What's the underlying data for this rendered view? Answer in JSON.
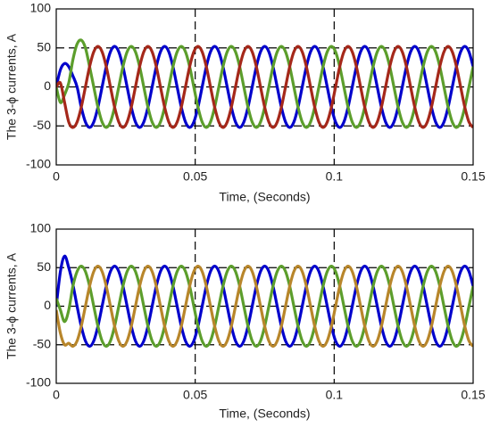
{
  "chart_data": [
    {
      "type": "line",
      "xlabel": "Time, (Seconds)",
      "ylabel": "The 3-ϕ currents, A",
      "xlim": [
        0,
        0.15
      ],
      "ylim": [
        -100,
        100
      ],
      "xticks": [
        0,
        0.05,
        0.1,
        0.15
      ],
      "yticks": [
        -100,
        -50,
        0,
        50,
        100
      ],
      "grid": true,
      "x": [
        0,
        0.0015,
        0.003,
        0.0045,
        0.006,
        0.0075,
        0.009,
        0.0105,
        0.012,
        0.0135,
        0.015,
        0.0165,
        0.018,
        0.0195,
        0.021,
        0.0225,
        0.024,
        0.0255,
        0.027,
        0.0285,
        0.03,
        0.0315,
        0.033,
        0.0345,
        0.036,
        0.0375,
        0.039,
        0.0405,
        0.042,
        0.0435,
        0.045,
        0.0465,
        0.048,
        0.0495,
        0.051,
        0.0525,
        0.054,
        0.0555,
        0.057,
        0.0585,
        0.06,
        0.0615,
        0.063,
        0.0645,
        0.066,
        0.0675,
        0.069,
        0.0705,
        0.072,
        0.0735,
        0.075,
        0.0765,
        0.078,
        0.0795,
        0.081,
        0.0825,
        0.084,
        0.0855,
        0.087,
        0.0885,
        0.09,
        0.0915,
        0.093,
        0.0945,
        0.096,
        0.0975,
        0.099,
        0.1005,
        0.102,
        0.1035,
        0.105,
        0.1065,
        0.108,
        0.1095,
        0.111,
        0.1125,
        0.114,
        0.1155,
        0.117,
        0.1185,
        0.12,
        0.1215,
        0.123,
        0.1245,
        0.126,
        0.1275,
        0.129,
        0.1305,
        0.132,
        0.1335,
        0.135,
        0.1365,
        0.138,
        0.1395,
        0.141,
        0.1425,
        0.144,
        0.1455,
        0.147,
        0.1485,
        0.15
      ],
      "series": [
        {
          "color": "#0000cc",
          "values": [
            0,
            22,
            30,
            26,
            14,
            0,
            -26,
            -45,
            -52,
            -45,
            -26,
            0,
            26,
            45,
            52,
            45,
            26,
            0,
            -26,
            -45,
            -52,
            -45,
            -26,
            0,
            26,
            45,
            52,
            45,
            26,
            0,
            -26,
            -45,
            -52,
            -45,
            -26,
            0,
            26,
            45,
            52,
            45,
            26,
            0,
            -26,
            -45,
            -52,
            -45,
            -26,
            0,
            26,
            45,
            52,
            45,
            26,
            0,
            -26,
            -45,
            -52,
            -45,
            -26,
            0,
            26,
            45,
            52,
            45,
            26,
            0,
            -26,
            -45,
            -52,
            -45,
            -26,
            0,
            26,
            45,
            52,
            45,
            26,
            0,
            -26,
            -45,
            -52,
            -45,
            -26,
            0,
            26,
            45,
            52,
            45,
            26,
            0,
            -26,
            -45,
            -52,
            -45,
            -26,
            0,
            26,
            45,
            52,
            45,
            26
          ]
        },
        {
          "color": "#5c9e2c",
          "values": [
            0,
            -20,
            -10,
            5,
            35,
            55,
            60,
            50,
            26,
            0,
            -26,
            -45,
            -52,
            -45,
            -26,
            0,
            26,
            45,
            52,
            45,
            26,
            0,
            -26,
            -45,
            -52,
            -45,
            -26,
            0,
            26,
            45,
            52,
            45,
            26,
            0,
            -26,
            -45,
            -52,
            -45,
            -26,
            0,
            26,
            45,
            52,
            45,
            26,
            0,
            -26,
            -45,
            -52,
            -45,
            -26,
            0,
            26,
            45,
            52,
            45,
            26,
            0,
            -26,
            -45,
            -52,
            -45,
            -26,
            0,
            26,
            45,
            52,
            45,
            26,
            0,
            -26,
            -45,
            -52,
            -45,
            -26,
            0,
            26,
            45,
            52,
            45,
            26,
            0,
            -26,
            -45,
            -52,
            -45,
            -26,
            0,
            26,
            45,
            52,
            45,
            26,
            0,
            -26,
            -45,
            -52,
            -45,
            -26,
            0,
            26
          ]
        },
        {
          "color": "#a5281a",
          "values": [
            0,
            5,
            -20,
            -45,
            -52,
            -45,
            -26,
            0,
            26,
            45,
            52,
            45,
            26,
            0,
            -26,
            -45,
            -52,
            -45,
            -26,
            0,
            26,
            45,
            52,
            45,
            26,
            0,
            -26,
            -45,
            -52,
            -45,
            -26,
            0,
            26,
            45,
            52,
            45,
            26,
            0,
            -26,
            -45,
            -52,
            -45,
            -26,
            0,
            26,
            45,
            52,
            45,
            26,
            0,
            -26,
            -45,
            -52,
            -45,
            -26,
            0,
            26,
            45,
            52,
            45,
            26,
            0,
            -26,
            -45,
            -52,
            -45,
            -26,
            0,
            26,
            45,
            52,
            45,
            26,
            0,
            -26,
            -45,
            -52,
            -45,
            -26,
            0,
            26,
            45,
            52,
            45,
            26,
            0,
            -26,
            -45,
            -52,
            -45,
            -26,
            0,
            26,
            45,
            52,
            45,
            26,
            0,
            -26,
            -45,
            -52
          ]
        }
      ]
    },
    {
      "type": "line",
      "xlabel": "Time, (Seconds)",
      "ylabel": "The 3-ϕ currents, A",
      "xlim": [
        0,
        0.15
      ],
      "ylim": [
        -100,
        100
      ],
      "xticks": [
        0,
        0.05,
        0.1,
        0.15
      ],
      "yticks": [
        -100,
        -50,
        0,
        50,
        100
      ],
      "grid": true,
      "x": [
        0,
        0.0015,
        0.003,
        0.0045,
        0.006,
        0.0075,
        0.009,
        0.0105,
        0.012,
        0.0135,
        0.015,
        0.0165,
        0.018,
        0.0195,
        0.021,
        0.0225,
        0.024,
        0.0255,
        0.027,
        0.0285,
        0.03,
        0.0315,
        0.033,
        0.0345,
        0.036,
        0.0375,
        0.039,
        0.0405,
        0.042,
        0.0435,
        0.045,
        0.0465,
        0.048,
        0.0495,
        0.051,
        0.0525,
        0.054,
        0.0555,
        0.057,
        0.0585,
        0.06,
        0.0615,
        0.063,
        0.0645,
        0.066,
        0.0675,
        0.069,
        0.0705,
        0.072,
        0.0735,
        0.075,
        0.0765,
        0.078,
        0.0795,
        0.081,
        0.0825,
        0.084,
        0.0855,
        0.087,
        0.0885,
        0.09,
        0.0915,
        0.093,
        0.0945,
        0.096,
        0.0975,
        0.099,
        0.1005,
        0.102,
        0.1035,
        0.105,
        0.1065,
        0.108,
        0.1095,
        0.111,
        0.1125,
        0.114,
        0.1155,
        0.117,
        0.1185,
        0.12,
        0.1215,
        0.123,
        0.1245,
        0.126,
        0.1275,
        0.129,
        0.1305,
        0.132,
        0.1335,
        0.135,
        0.1365,
        0.138,
        0.1395,
        0.141,
        0.1425,
        0.144,
        0.1455,
        0.147,
        0.1485,
        0.15
      ],
      "series": [
        {
          "color": "#0000cc",
          "values": [
            0,
            45,
            65,
            50,
            28,
            0,
            -26,
            -45,
            -52,
            -45,
            -26,
            0,
            26,
            45,
            52,
            45,
            26,
            0,
            -26,
            -45,
            -52,
            -45,
            -26,
            0,
            26,
            45,
            52,
            45,
            26,
            0,
            -26,
            -45,
            -52,
            -45,
            -26,
            0,
            26,
            45,
            52,
            45,
            26,
            0,
            -26,
            -45,
            -52,
            -45,
            -26,
            0,
            26,
            45,
            52,
            45,
            26,
            0,
            -26,
            -45,
            -52,
            -45,
            -26,
            0,
            26,
            45,
            52,
            45,
            26,
            0,
            -26,
            -45,
            -52,
            -45,
            -26,
            0,
            26,
            45,
            52,
            45,
            26,
            0,
            -26,
            -45,
            -52,
            -45,
            -26,
            0,
            26,
            45,
            52,
            45,
            26,
            0,
            -26,
            -45,
            -52,
            -45,
            -26,
            0,
            26,
            45,
            52,
            45,
            26
          ]
        },
        {
          "color": "#5c9e2c",
          "values": [
            10,
            -5,
            -20,
            -5,
            26,
            45,
            52,
            45,
            26,
            0,
            -26,
            -45,
            -52,
            -45,
            -26,
            0,
            26,
            45,
            52,
            45,
            26,
            0,
            -26,
            -45,
            -52,
            -45,
            -26,
            0,
            26,
            45,
            52,
            45,
            26,
            0,
            -26,
            -45,
            -52,
            -45,
            -26,
            0,
            26,
            45,
            52,
            45,
            26,
            0,
            -26,
            -45,
            -52,
            -45,
            -26,
            0,
            26,
            45,
            52,
            45,
            26,
            0,
            -26,
            -45,
            -52,
            -45,
            -26,
            0,
            26,
            45,
            52,
            45,
            26,
            0,
            -26,
            -45,
            -52,
            -45,
            -26,
            0,
            26,
            45,
            52,
            45,
            26,
            0,
            -26,
            -45,
            -52,
            -45,
            -26,
            0,
            26,
            45,
            52,
            45,
            26,
            0,
            -26,
            -45,
            -52,
            -45,
            -26,
            0,
            26
          ]
        },
        {
          "color": "#b8862b",
          "values": [
            -5,
            -35,
            -50,
            -48,
            -52,
            -45,
            -26,
            0,
            26,
            45,
            52,
            45,
            26,
            0,
            -26,
            -45,
            -52,
            -45,
            -26,
            0,
            26,
            45,
            52,
            45,
            26,
            0,
            -26,
            -45,
            -52,
            -45,
            -26,
            0,
            26,
            45,
            52,
            45,
            26,
            0,
            -26,
            -45,
            -52,
            -45,
            -26,
            0,
            26,
            45,
            52,
            45,
            26,
            0,
            -26,
            -45,
            -52,
            -45,
            -26,
            0,
            26,
            45,
            52,
            45,
            26,
            0,
            -26,
            -45,
            -52,
            -45,
            -26,
            0,
            26,
            45,
            52,
            45,
            26,
            0,
            -26,
            -45,
            -52,
            -45,
            -26,
            0,
            26,
            45,
            52,
            45,
            26,
            0,
            -26,
            -45,
            -52,
            -45,
            -26,
            0,
            26,
            45,
            52,
            45,
            26,
            0,
            -26,
            -45,
            -52
          ]
        }
      ]
    }
  ]
}
